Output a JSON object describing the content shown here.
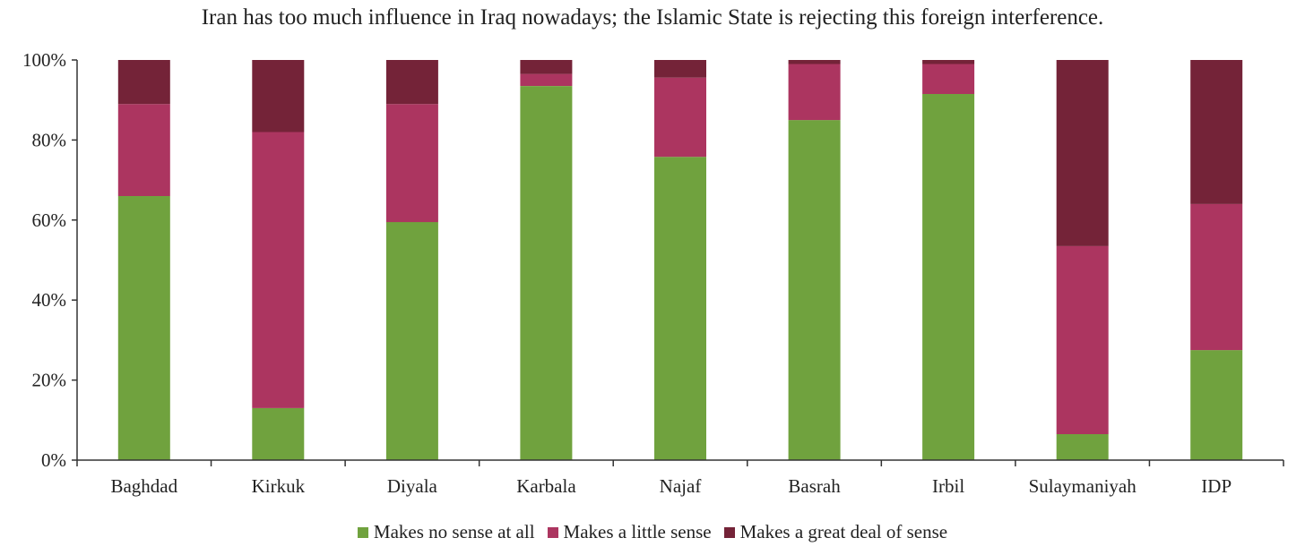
{
  "chart_data": {
    "type": "bar",
    "stacked": true,
    "percent": true,
    "title": "Iran has too much influence in Iraq nowadays; the Islamic State is rejecting this foreign interference.",
    "categories": [
      "Baghdad",
      "Kirkuk",
      "Diyala",
      "Karbala",
      "Najaf",
      "Basrah",
      "Irbil",
      "Sulaymaniyah",
      "IDP"
    ],
    "series": [
      {
        "name": "Makes no sense at all",
        "color": "#70a23e",
        "values": [
          66,
          13,
          59.5,
          93.5,
          75.8,
          85,
          91.5,
          6.5,
          27.5
        ]
      },
      {
        "name": "Makes a little sense",
        "color": "#ac3560",
        "values": [
          23,
          69,
          29.5,
          3,
          19.8,
          14,
          7.5,
          47,
          36.5
        ]
      },
      {
        "name": "Makes a great deal of sense",
        "color": "#742338",
        "values": [
          11,
          18,
          11,
          3.5,
          4.4,
          1,
          1,
          46.5,
          36
        ]
      }
    ],
    "ylim": [
      0,
      100
    ],
    "yticks": [
      "0%",
      "20%",
      "40%",
      "60%",
      "80%",
      "100%"
    ],
    "xlabel": "",
    "ylabel": "",
    "legend_position": "bottom",
    "grid": false
  }
}
